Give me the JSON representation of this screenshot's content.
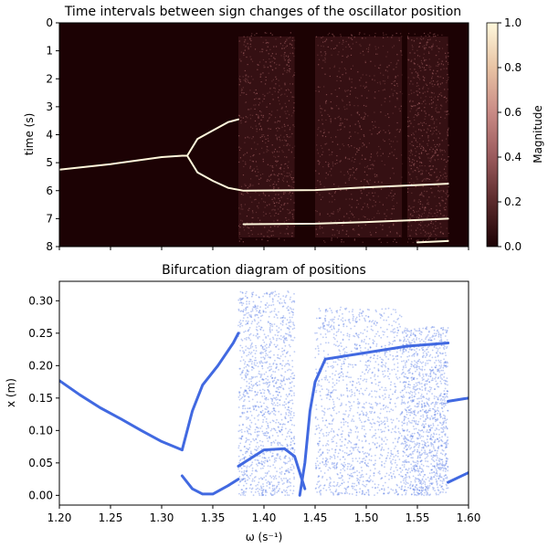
{
  "chart_data": [
    {
      "type": "heatmap",
      "title": "Time intervals between sign changes of the oscillator position",
      "ylabel": "time (s)",
      "xlabel": "",
      "ylim": [
        8,
        0
      ],
      "yticks": [
        "0",
        "1",
        "2",
        "3",
        "4",
        "5",
        "6",
        "7",
        "8"
      ],
      "xlim": [
        1.2,
        1.6
      ],
      "colorbar": {
        "label": "Magnitude",
        "range": [
          0,
          1
        ],
        "ticks": [
          "0.0",
          "0.2",
          "0.4",
          "0.6",
          "0.8",
          "1.0"
        ],
        "colors": [
          "#1c0204",
          "#5a2a2c",
          "#9a5a5c",
          "#c98a85",
          "#e8c3a4",
          "#fff8dc"
        ]
      },
      "lines": [
        {
          "name": "main",
          "points": [
            [
              1.2,
              5.25
            ],
            [
              1.25,
              5.05
            ],
            [
              1.3,
              4.8
            ],
            [
              1.32,
              4.75
            ],
            [
              1.325,
              4.75
            ]
          ]
        },
        {
          "name": "upper-branch",
          "points": [
            [
              1.325,
              4.75
            ],
            [
              1.335,
              4.15
            ],
            [
              1.35,
              3.85
            ],
            [
              1.365,
              3.55
            ],
            [
              1.375,
              3.45
            ]
          ]
        },
        {
          "name": "lower-branch",
          "points": [
            [
              1.325,
              4.75
            ],
            [
              1.335,
              5.35
            ],
            [
              1.35,
              5.65
            ],
            [
              1.365,
              5.9
            ],
            [
              1.38,
              6.0
            ],
            [
              1.45,
              5.98
            ],
            [
              1.5,
              5.88
            ],
            [
              1.55,
              5.8
            ],
            [
              1.58,
              5.75
            ]
          ]
        },
        {
          "name": "band-7",
          "points": [
            [
              1.38,
              7.2
            ],
            [
              1.45,
              7.18
            ],
            [
              1.5,
              7.12
            ],
            [
              1.55,
              7.05
            ],
            [
              1.58,
              7.0
            ]
          ]
        },
        {
          "name": "band-7b",
          "points": [
            [
              1.55,
              7.85
            ],
            [
              1.58,
              7.8
            ]
          ]
        }
      ],
      "chaos_regions": [
        [
          1.375,
          1.43
        ],
        [
          1.45,
          1.535
        ],
        [
          1.54,
          1.58
        ]
      ]
    },
    {
      "type": "scatter",
      "title": "Bifurcation diagram of positions",
      "xlabel": "ω (s⁻¹)",
      "ylabel": "x (m)",
      "xlim": [
        1.2,
        1.6
      ],
      "ylim": [
        -0.015,
        0.33
      ],
      "xticks": [
        "1.20",
        "1.25",
        "1.30",
        "1.35",
        "1.40",
        "1.45",
        "1.50",
        "1.55",
        "1.60"
      ],
      "yticks": [
        "0.00",
        "0.05",
        "0.10",
        "0.15",
        "0.20",
        "0.25",
        "0.30"
      ],
      "color": "#4169e1",
      "branches": [
        {
          "name": "period-1",
          "points": [
            [
              1.2,
              0.177
            ],
            [
              1.22,
              0.155
            ],
            [
              1.24,
              0.135
            ],
            [
              1.26,
              0.118
            ],
            [
              1.28,
              0.1
            ],
            [
              1.3,
              0.083
            ],
            [
              1.32,
              0.07
            ]
          ]
        },
        {
          "name": "upper",
          "points": [
            [
              1.32,
              0.07
            ],
            [
              1.33,
              0.13
            ],
            [
              1.34,
              0.17
            ],
            [
              1.355,
              0.2
            ],
            [
              1.37,
              0.235
            ],
            [
              1.375,
              0.25
            ]
          ]
        },
        {
          "name": "lower",
          "points": [
            [
              1.32,
              0.03
            ],
            [
              1.33,
              0.01
            ],
            [
              1.34,
              0.002
            ],
            [
              1.35,
              0.002
            ],
            [
              1.365,
              0.015
            ],
            [
              1.375,
              0.025
            ]
          ]
        },
        {
          "name": "middle",
          "points": [
            [
              1.375,
              0.045
            ],
            [
              1.4,
              0.07
            ],
            [
              1.42,
              0.072
            ],
            [
              1.43,
              0.06
            ],
            [
              1.44,
              0.01
            ]
          ]
        },
        {
          "name": "rebound",
          "points": [
            [
              1.435,
              0.0
            ],
            [
              1.44,
              0.05
            ],
            [
              1.445,
              0.13
            ],
            [
              1.45,
              0.175
            ],
            [
              1.46,
              0.21
            ]
          ]
        },
        {
          "name": "upper-right",
          "points": [
            [
              1.46,
              0.21
            ],
            [
              1.5,
              0.22
            ],
            [
              1.54,
              0.23
            ],
            [
              1.58,
              0.235
            ]
          ]
        },
        {
          "name": "tail-high",
          "points": [
            [
              1.58,
              0.145
            ],
            [
              1.6,
              0.15
            ]
          ]
        },
        {
          "name": "tail-low",
          "points": [
            [
              1.58,
              0.02
            ],
            [
              1.6,
              0.035
            ]
          ]
        }
      ],
      "chaos_regions": [
        [
          1.375,
          1.43,
          0.0,
          0.315
        ],
        [
          1.45,
          1.535,
          0.0,
          0.29
        ],
        [
          1.535,
          1.58,
          0.0,
          0.26
        ]
      ]
    }
  ]
}
